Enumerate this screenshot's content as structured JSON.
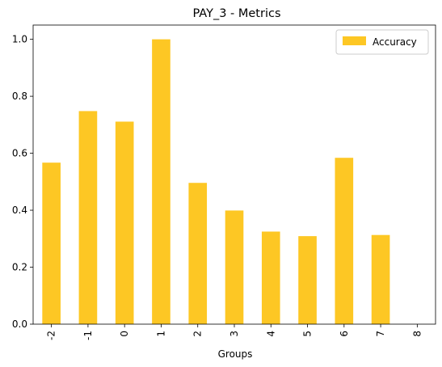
{
  "chart_data": {
    "type": "bar",
    "title": "PAY_3 - Metrics",
    "xlabel": "Groups",
    "ylabel": "",
    "categories": [
      "-2",
      "-1",
      "0",
      "1",
      "2",
      "3",
      "4",
      "5",
      "6",
      "7",
      "8"
    ],
    "series": [
      {
        "name": "Accuracy",
        "color": "#fdc724",
        "values": [
          0.567,
          0.748,
          0.711,
          1.0,
          0.496,
          0.399,
          0.325,
          0.309,
          0.584,
          0.313,
          0.0
        ]
      }
    ],
    "ylim": [
      0,
      1.05
    ],
    "yticks": [
      "0.0",
      "0.2",
      "0.4",
      "0.6",
      "0.8",
      "1.0"
    ],
    "grid": false,
    "legend_position": "top-right"
  }
}
